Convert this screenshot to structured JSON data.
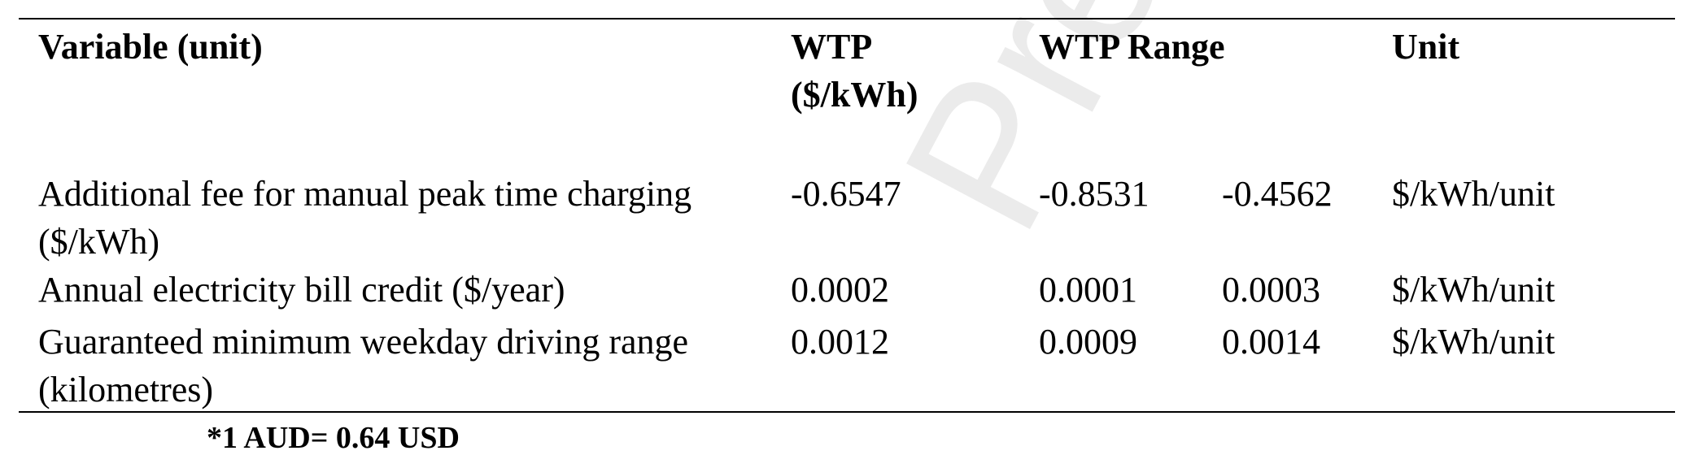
{
  "table": {
    "header": [
      "Variable (unit)",
      "WTP ($/kWh)",
      "WTP Range",
      "Unit"
    ],
    "rows": [
      [
        "Additional fee for manual peak time charging ($/kWh)",
        "-0.6547",
        "-0.8531",
        "-0.4562",
        "$/kWh/unit"
      ],
      [
        "Annual electricity bill credit ($/year)",
        "0.0002",
        "0.0001",
        "0.0003",
        "$/kWh/unit"
      ],
      [
        "Guaranteed minimum weekday driving range (kilometres)",
        "0.0012",
        "0.0009",
        "0.0014",
        "$/kWh/unit"
      ]
    ],
    "footnote": "*1 AUD= 0.64 USD"
  },
  "watermark": "Preview"
}
